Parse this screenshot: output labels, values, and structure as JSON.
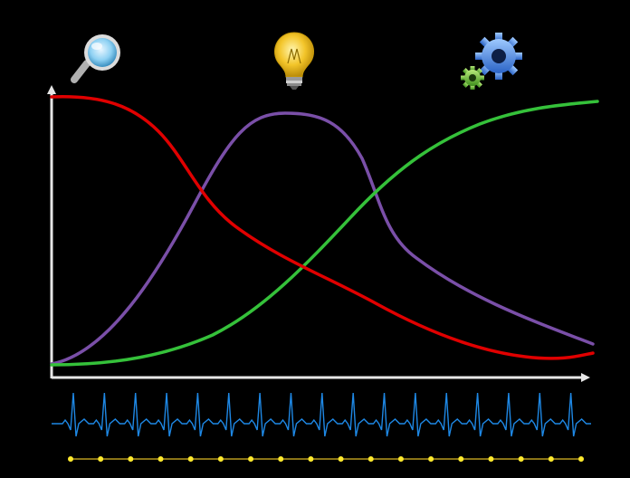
{
  "colors": {
    "background": "#000000",
    "axis": "#e6e6e6",
    "red_curve": "#e00000",
    "purple_curve": "#7a4fa8",
    "green_curve": "#35c13a",
    "pulse": "#1e88e5",
    "timeline_line": "#b79a1f",
    "timeline_dot": "#ffea2e"
  },
  "icons": [
    {
      "name": "magnifier-icon"
    },
    {
      "name": "lightbulb-icon"
    },
    {
      "name": "gears-icon"
    }
  ],
  "diagram": {
    "curves": [
      "red-curve",
      "purple-curve",
      "green-curve"
    ],
    "pulse_beats": 17,
    "timeline_dots": 18
  }
}
